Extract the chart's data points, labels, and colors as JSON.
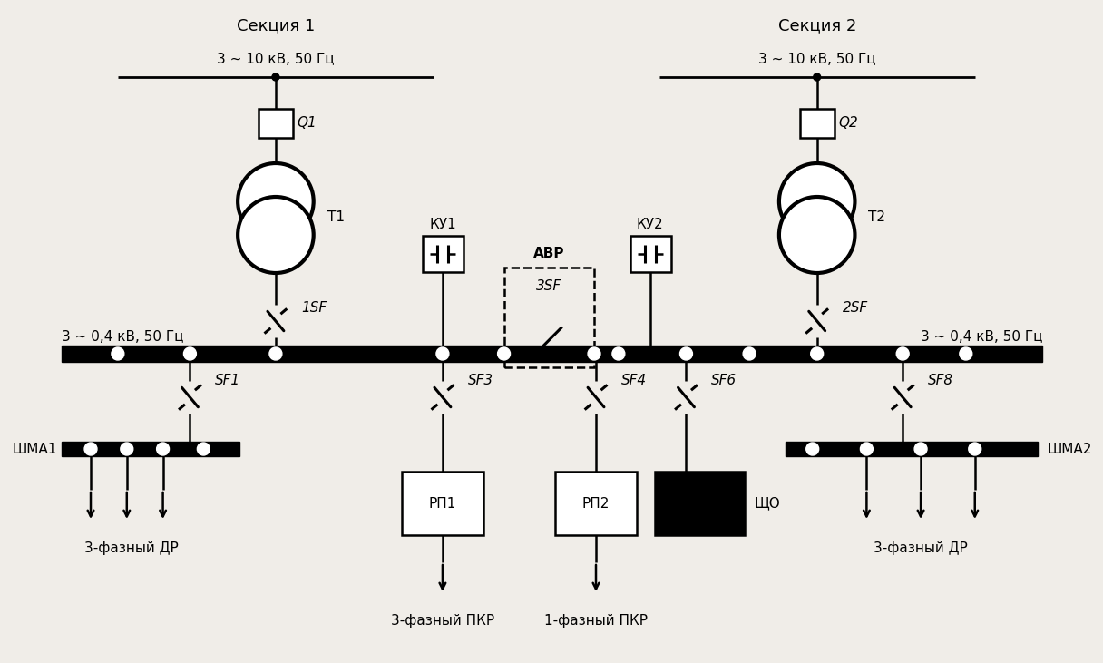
{
  "background_color": "#f0ede8",
  "figsize": [
    12.16,
    7.31
  ],
  "dpi": 100,
  "section1_label": "Секция 1",
  "section2_label": "Секция 2",
  "bus1_label": "3 ~ 10 кВ, 50 Гц",
  "bus2_label": "3 ~ 10 кВ, 50 Гц",
  "low1_label": "3 ~ 0,4 кВ, 50 Гц",
  "low2_label": "3 ~ 0,4 кВ, 50 Гц",
  "Q1_label": "Q1",
  "Q2_label": "Q2",
  "T1_label": "Т1",
  "T2_label": "Т2",
  "KU1_label": "КУ1",
  "KU2_label": "КУ2",
  "AVR_label": "АВР",
  "SF1_label": "1SF",
  "SF2_label": "2SF",
  "SF3_label": "3SF",
  "sf1_label": "SF1",
  "sf3_label": "SF3",
  "sf4_label": "SF4",
  "sf6_label": "SF6",
  "sf8_label": "SF8",
  "SHM1_label": "ШМА1",
  "SHM2_label": "ШМА2",
  "RP1_label": "РП1",
  "RP2_label": "РП2",
  "SHO_label": "ЩО",
  "out1_label": "3-фазный ДР",
  "out2_label": "3-фазный ПКР",
  "out3_label": "1-фазный ПКР",
  "out4_label": "3-фазный ДР"
}
